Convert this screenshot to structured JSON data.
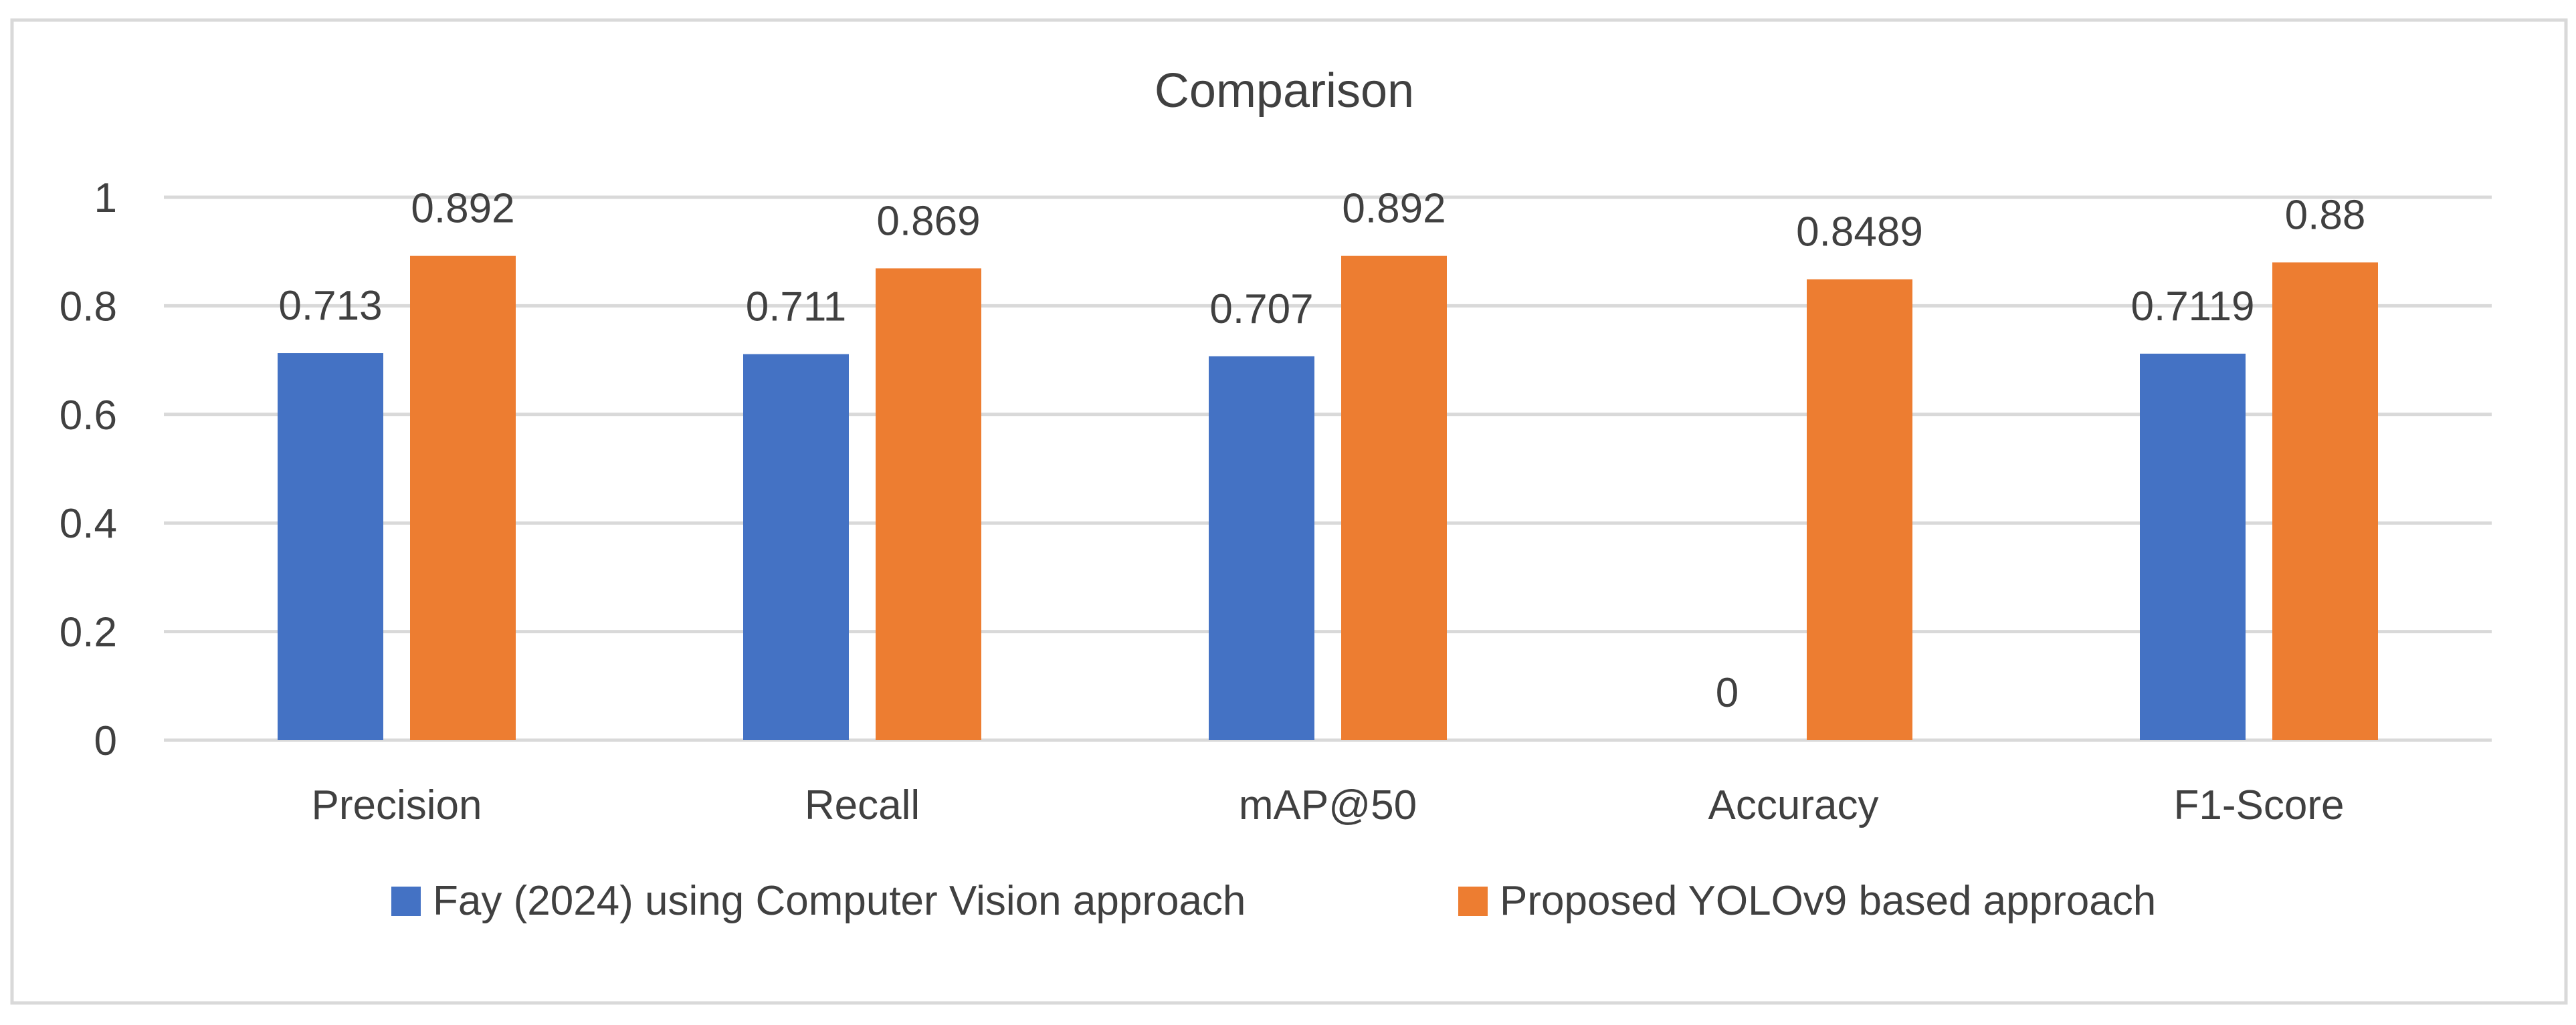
{
  "chart_data": {
    "type": "bar",
    "title": "Comparison",
    "categories": [
      "Precision",
      "Recall",
      "mAP@50",
      "Accuracy",
      "F1-Score"
    ],
    "series": [
      {
        "name": "Fay (2024) using Computer Vision approach",
        "color": "#4472C4",
        "values": [
          0.713,
          0.711,
          0.707,
          0,
          0.7119
        ],
        "labels": [
          "0.713",
          "0.711",
          "0.707",
          "0",
          "0.7119"
        ]
      },
      {
        "name": "Proposed YOLOv9 based approach",
        "color": "#ED7D31",
        "values": [
          0.892,
          0.869,
          0.892,
          0.8489,
          0.88
        ],
        "labels": [
          "0.892",
          "0.869",
          "0.892",
          "0.8489",
          "0.88"
        ]
      }
    ],
    "xlabel": "",
    "ylabel": "",
    "ylim": [
      0,
      1
    ],
    "yticks": [
      0,
      0.2,
      0.4,
      0.6,
      0.8,
      1
    ],
    "ytick_labels": [
      "0",
      "0.2",
      "0.4",
      "0.6",
      "0.8",
      "1"
    ],
    "grid": true,
    "legend_position": "bottom"
  }
}
